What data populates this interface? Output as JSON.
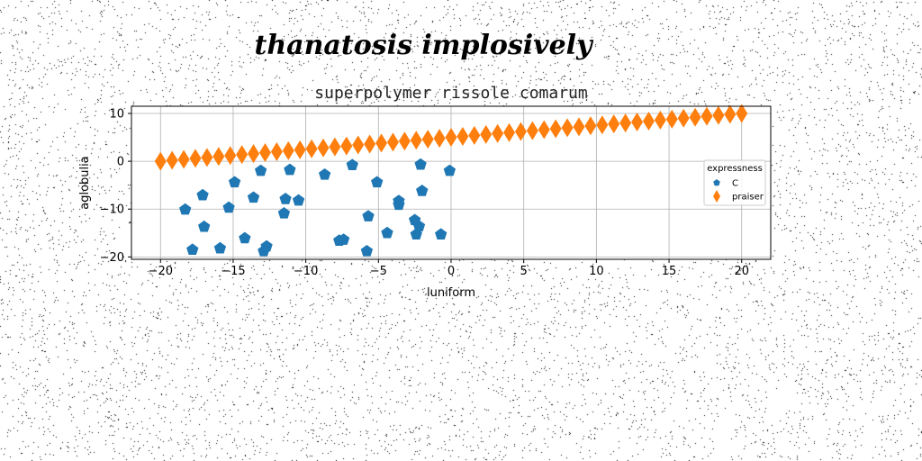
{
  "chart_data": {
    "type": "scatter",
    "suptitle": "thanatosis implosively",
    "title": "superpolymer rissole comarum",
    "xlabel": "luniform",
    "ylabel": "aglobulia",
    "xlim": [
      -22,
      22
    ],
    "ylim": [
      -20.5,
      11.5
    ],
    "xticks": [
      -20,
      -15,
      -10,
      -5,
      0,
      5,
      10,
      15,
      20
    ],
    "yticks": [
      -20,
      -10,
      0,
      10
    ],
    "grid": true,
    "legend": {
      "title": "expressness",
      "position": "right"
    },
    "colors": {
      "C": "#1f77b4",
      "praiser": "#ff7f0e"
    },
    "series": [
      {
        "name": "C",
        "marker": "pentagon",
        "points": [
          [
            -18.3,
            -10.1
          ],
          [
            -17.8,
            -18.5
          ],
          [
            -17.1,
            -7.1
          ],
          [
            -17.0,
            -13.7
          ],
          [
            -15.9,
            -18.2
          ],
          [
            -15.3,
            -9.7
          ],
          [
            -14.9,
            -4.4
          ],
          [
            -14.2,
            -16.1
          ],
          [
            -13.6,
            -7.6
          ],
          [
            -13.1,
            -2.0
          ],
          [
            -12.9,
            -18.8
          ],
          [
            -12.7,
            -17.8
          ],
          [
            -11.5,
            -10.9
          ],
          [
            -11.4,
            -7.9
          ],
          [
            -11.1,
            -1.8
          ],
          [
            -10.5,
            -8.2
          ],
          [
            -8.7,
            -2.8
          ],
          [
            -7.7,
            -16.6
          ],
          [
            -7.4,
            -16.4
          ],
          [
            -6.8,
            -0.8
          ],
          [
            -5.8,
            -18.8
          ],
          [
            -5.7,
            -11.5
          ],
          [
            -5.1,
            -4.4
          ],
          [
            -4.4,
            -15.0
          ],
          [
            -3.6,
            -8.3
          ],
          [
            -3.6,
            -9.1
          ],
          [
            -2.5,
            -12.3
          ],
          [
            -2.4,
            -15.3
          ],
          [
            -2.1,
            -0.7
          ],
          [
            -2.2,
            -13.6
          ],
          [
            -2.0,
            -6.2
          ],
          [
            -0.7,
            -15.3
          ],
          [
            -0.1,
            -2.0
          ]
        ]
      },
      {
        "name": "praiser",
        "marker": "thin_diamond",
        "points": [
          [
            -20.0,
            0.0
          ],
          [
            -19.2,
            0.2
          ],
          [
            -18.4,
            0.4
          ],
          [
            -17.6,
            0.6
          ],
          [
            -16.8,
            0.8
          ],
          [
            -16.0,
            1.0
          ],
          [
            -15.2,
            1.2
          ],
          [
            -14.4,
            1.4
          ],
          [
            -13.6,
            1.6
          ],
          [
            -12.8,
            1.8
          ],
          [
            -12.0,
            2.0
          ],
          [
            -11.2,
            2.2
          ],
          [
            -10.4,
            2.4
          ],
          [
            -9.6,
            2.6
          ],
          [
            -8.8,
            2.8
          ],
          [
            -8.0,
            3.0
          ],
          [
            -7.2,
            3.2
          ],
          [
            -6.4,
            3.4
          ],
          [
            -5.6,
            3.6
          ],
          [
            -4.8,
            3.8
          ],
          [
            -4.0,
            4.0
          ],
          [
            -3.2,
            4.2
          ],
          [
            -2.4,
            4.4
          ],
          [
            -1.6,
            4.6
          ],
          [
            -0.8,
            4.8
          ],
          [
            0.0,
            5.0
          ],
          [
            0.8,
            5.2
          ],
          [
            1.6,
            5.4
          ],
          [
            2.4,
            5.6
          ],
          [
            3.2,
            5.8
          ],
          [
            4.0,
            6.0
          ],
          [
            4.8,
            6.2
          ],
          [
            5.6,
            6.4
          ],
          [
            6.4,
            6.6
          ],
          [
            7.2,
            6.8
          ],
          [
            8.0,
            7.0
          ],
          [
            8.8,
            7.2
          ],
          [
            9.6,
            7.4
          ],
          [
            10.4,
            7.6
          ],
          [
            11.2,
            7.8
          ],
          [
            12.0,
            8.0
          ],
          [
            12.8,
            8.2
          ],
          [
            13.6,
            8.4
          ],
          [
            14.4,
            8.6
          ],
          [
            15.2,
            8.8
          ],
          [
            16.0,
            9.0
          ],
          [
            16.8,
            9.2
          ],
          [
            17.6,
            9.4
          ],
          [
            18.4,
            9.6
          ],
          [
            19.2,
            9.8
          ],
          [
            20.0,
            10.0
          ]
        ]
      }
    ]
  }
}
